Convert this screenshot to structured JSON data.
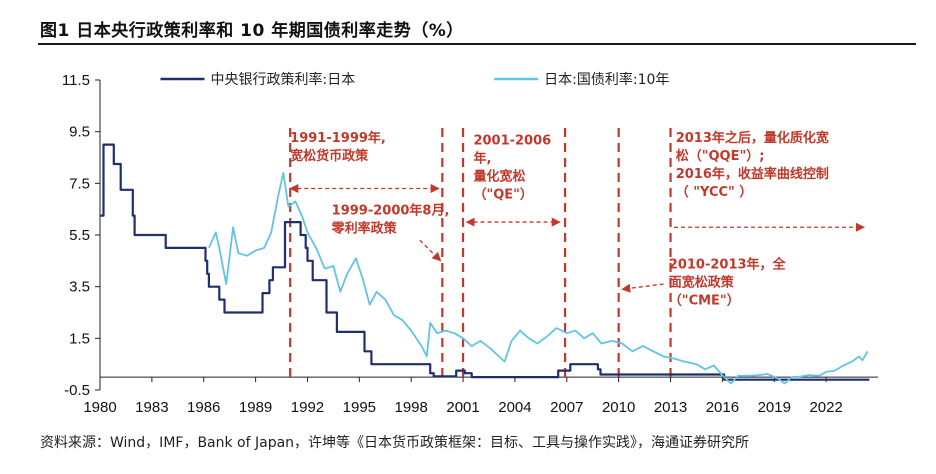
{
  "title": "图1  日本央行政策利率和 10 年期国债利率走势（%）",
  "source": "资料来源：Wind，IMF，Bank of Japan，许坤等《日本货币政策框架：目标、工具与操作实践》，海通证券研究所",
  "chart_data": {
    "type": "line",
    "xlim": [
      1980,
      2025
    ],
    "ylim": [
      -0.5,
      11.5
    ],
    "x_ticks": [
      "1980",
      "1983",
      "1986",
      "1989",
      "1992",
      "1995",
      "1998",
      "2001",
      "2004",
      "2007",
      "2010",
      "2013",
      "2016",
      "2019",
      "2022"
    ],
    "y_ticks": [
      "11.5",
      "9.5",
      "7.5",
      "5.5",
      "3.5",
      "1.5",
      "-0.5"
    ],
    "legend_position": "top",
    "series": [
      {
        "name": "中央银行政策利率:日本",
        "color": "#1f2f6e",
        "style": "step",
        "points": [
          [
            1980.0,
            6.25
          ],
          [
            1980.2,
            9.0
          ],
          [
            1980.8,
            8.25
          ],
          [
            1981.2,
            7.25
          ],
          [
            1981.9,
            6.25
          ],
          [
            1982.0,
            5.5
          ],
          [
            1983.8,
            5.0
          ],
          [
            1986.1,
            4.5
          ],
          [
            1986.2,
            4.0
          ],
          [
            1986.3,
            3.5
          ],
          [
            1986.9,
            3.0
          ],
          [
            1987.2,
            2.5
          ],
          [
            1989.4,
            3.25
          ],
          [
            1989.8,
            3.75
          ],
          [
            1990.0,
            4.25
          ],
          [
            1990.7,
            6.0
          ],
          [
            1991.6,
            5.5
          ],
          [
            1991.9,
            5.0
          ],
          [
            1992.0,
            4.5
          ],
          [
            1992.3,
            3.75
          ],
          [
            1993.1,
            2.5
          ],
          [
            1993.7,
            1.75
          ],
          [
            1995.3,
            1.0
          ],
          [
            1995.7,
            0.5
          ],
          [
            1999.1,
            0.15
          ],
          [
            1999.3,
            0.03
          ],
          [
            2000.6,
            0.25
          ],
          [
            2001.1,
            0.15
          ],
          [
            2001.5,
            0.001
          ],
          [
            2006.5,
            0.25
          ],
          [
            2007.2,
            0.5
          ],
          [
            2008.8,
            0.3
          ],
          [
            2008.95,
            0.1
          ],
          [
            2016.1,
            -0.1
          ],
          [
            2024.5,
            -0.1
          ]
        ]
      },
      {
        "name": "日本:国债利率:10年",
        "color": "#62c4e3",
        "style": "line",
        "points": [
          [
            1986.3,
            5.0
          ],
          [
            1986.7,
            5.6
          ],
          [
            1986.9,
            5.0
          ],
          [
            1987.3,
            3.6
          ],
          [
            1987.7,
            5.8
          ],
          [
            1988.0,
            4.8
          ],
          [
            1988.5,
            4.7
          ],
          [
            1989.0,
            4.9
          ],
          [
            1989.5,
            5.0
          ],
          [
            1989.9,
            5.6
          ],
          [
            1990.3,
            7.0
          ],
          [
            1990.6,
            7.9
          ],
          [
            1990.9,
            6.6
          ],
          [
            1991.3,
            6.8
          ],
          [
            1991.7,
            6.2
          ],
          [
            1992.0,
            5.6
          ],
          [
            1992.5,
            5.0
          ],
          [
            1993.0,
            4.2
          ],
          [
            1993.5,
            4.3
          ],
          [
            1993.9,
            3.3
          ],
          [
            1994.3,
            4.0
          ],
          [
            1994.8,
            4.6
          ],
          [
            1995.2,
            3.8
          ],
          [
            1995.6,
            2.8
          ],
          [
            1996.0,
            3.3
          ],
          [
            1996.5,
            3.0
          ],
          [
            1997.0,
            2.4
          ],
          [
            1997.5,
            2.2
          ],
          [
            1998.0,
            1.8
          ],
          [
            1998.6,
            1.2
          ],
          [
            1998.9,
            0.8
          ],
          [
            1999.1,
            2.1
          ],
          [
            1999.5,
            1.7
          ],
          [
            2000.0,
            1.8
          ],
          [
            2000.5,
            1.7
          ],
          [
            2001.0,
            1.5
          ],
          [
            2001.5,
            1.2
          ],
          [
            2002.0,
            1.4
          ],
          [
            2002.6,
            1.1
          ],
          [
            2003.4,
            0.6
          ],
          [
            2003.8,
            1.4
          ],
          [
            2004.3,
            1.8
          ],
          [
            2004.8,
            1.5
          ],
          [
            2005.3,
            1.3
          ],
          [
            2005.9,
            1.6
          ],
          [
            2006.4,
            1.9
          ],
          [
            2007.0,
            1.7
          ],
          [
            2007.5,
            1.8
          ],
          [
            2008.0,
            1.5
          ],
          [
            2008.5,
            1.7
          ],
          [
            2009.0,
            1.3
          ],
          [
            2009.6,
            1.4
          ],
          [
            2010.2,
            1.3
          ],
          [
            2010.8,
            1.0
          ],
          [
            2011.4,
            1.2
          ],
          [
            2012.0,
            1.0
          ],
          [
            2012.6,
            0.8
          ],
          [
            2013.3,
            0.7
          ],
          [
            2013.8,
            0.6
          ],
          [
            2014.5,
            0.5
          ],
          [
            2015.0,
            0.3
          ],
          [
            2015.5,
            0.45
          ],
          [
            2016.1,
            0.0
          ],
          [
            2016.5,
            -0.25
          ],
          [
            2016.9,
            0.05
          ],
          [
            2017.5,
            0.05
          ],
          [
            2018.0,
            0.07
          ],
          [
            2018.6,
            0.12
          ],
          [
            2019.2,
            -0.05
          ],
          [
            2019.6,
            -0.25
          ],
          [
            2020.0,
            0.0
          ],
          [
            2020.5,
            0.02
          ],
          [
            2021.0,
            0.08
          ],
          [
            2021.6,
            0.05
          ],
          [
            2022.0,
            0.2
          ],
          [
            2022.5,
            0.25
          ],
          [
            2023.0,
            0.45
          ],
          [
            2023.5,
            0.6
          ],
          [
            2023.9,
            0.8
          ],
          [
            2024.1,
            0.65
          ],
          [
            2024.4,
            1.0
          ]
        ]
      }
    ],
    "annotations": [
      {
        "lines": [
          "1991-1999年,",
          "宽松货币政策"
        ],
        "x": 1991.0,
        "y": 9.1
      },
      {
        "lines": [
          "1999-2000年8月,",
          "零利率政策"
        ],
        "x": 1993.4,
        "y": 6.3
      },
      {
        "lines": [
          "2001-2006",
          "年,",
          "量化宽松",
          "（\"QE\"）"
        ],
        "x": 2001.6,
        "y": 9.0
      },
      {
        "lines": [
          "2010-2013年，全",
          "面宽松政策",
          "（\"CME\"）"
        ],
        "x": 2012.9,
        "y": 4.2
      },
      {
        "lines": [
          "2013年之后，量化质化宽",
          "松（\"QQE\"）;",
          "2016年，收益率曲线控制",
          "（ \"YCC\" ）"
        ],
        "x": 2013.3,
        "y": 9.1
      }
    ],
    "period_lines": [
      1991.0,
      1999.8,
      2001.0,
      2006.9,
      2010.0,
      2013.0
    ],
    "arrows": [
      {
        "from": [
          1991.0,
          7.3
        ],
        "to": [
          1999.6,
          7.3
        ],
        "both": true
      },
      {
        "from": [
          1998.5,
          5.3
        ],
        "to": [
          1999.7,
          4.5
        ],
        "both": false
      },
      {
        "from": [
          2001.2,
          6.0
        ],
        "to": [
          2006.6,
          6.0
        ],
        "both": true
      },
      {
        "from": [
          2012.6,
          3.6
        ],
        "to": [
          2010.2,
          3.4
        ],
        "both": false
      },
      {
        "from": [
          2013.2,
          5.8
        ],
        "to": [
          2024.2,
          5.8
        ],
        "both": false
      }
    ]
  }
}
